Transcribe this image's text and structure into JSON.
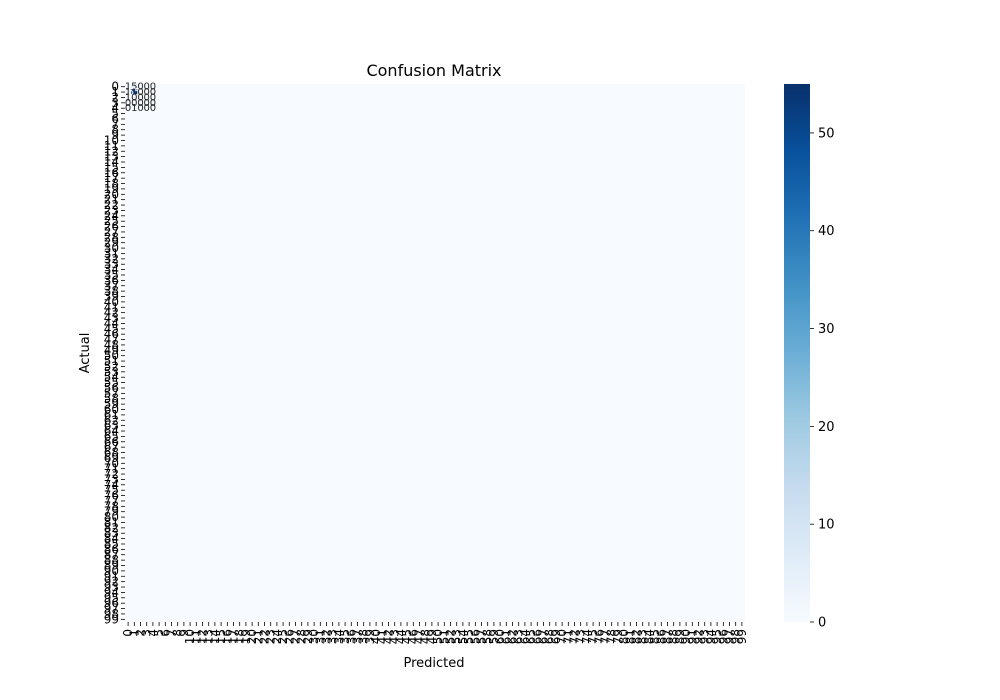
{
  "chart_data": {
    "type": "heatmap",
    "title": "Confusion Matrix",
    "xlabel": "Predicted",
    "ylabel": "Actual",
    "x_tick_labels": [
      "0",
      "1",
      "2",
      "3",
      "4",
      "5",
      "6",
      "7",
      "8",
      "9",
      "10",
      "11",
      "12",
      "13",
      "14",
      "15",
      "16",
      "17",
      "18",
      "19",
      "20",
      "21",
      "22",
      "23",
      "24",
      "25",
      "26",
      "27",
      "28",
      "29",
      "30",
      "31",
      "32",
      "33",
      "34",
      "35",
      "36",
      "37",
      "38",
      "39",
      "40",
      "41",
      "42",
      "43",
      "44",
      "45",
      "46",
      "47",
      "48",
      "49",
      "50",
      "51",
      "52",
      "53",
      "54",
      "55",
      "56",
      "57",
      "58",
      "59",
      "60",
      "61",
      "62",
      "63",
      "64",
      "65",
      "66",
      "67",
      "68",
      "69",
      "70",
      "71",
      "72",
      "73",
      "74",
      "75",
      "76",
      "77",
      "78",
      "79",
      "80",
      "81",
      "82",
      "83",
      "84",
      "85",
      "86",
      "87",
      "88",
      "89",
      "90",
      "91",
      "92",
      "93",
      "94",
      "95",
      "96",
      "97",
      "98",
      "99"
    ],
    "y_tick_labels": [
      "0",
      "1",
      "2",
      "3",
      "4",
      "5",
      "6",
      "7",
      "8",
      "9",
      "10",
      "11",
      "12",
      "13",
      "14",
      "15",
      "16",
      "17",
      "18",
      "19",
      "20",
      "21",
      "22",
      "23",
      "24",
      "25",
      "26",
      "27",
      "28",
      "29",
      "30",
      "31",
      "32",
      "33",
      "34",
      "35",
      "36",
      "37",
      "38",
      "39",
      "40",
      "41",
      "42",
      "43",
      "44",
      "45",
      "46",
      "47",
      "48",
      "49",
      "50",
      "51",
      "52",
      "53",
      "54",
      "55",
      "56",
      "57",
      "58",
      "59",
      "60",
      "61",
      "62",
      "63",
      "64",
      "65",
      "66",
      "67",
      "68",
      "69",
      "70",
      "71",
      "72",
      "73",
      "74",
      "75",
      "76",
      "77",
      "78",
      "79",
      "80",
      "81",
      "82",
      "83",
      "84",
      "85",
      "86",
      "87",
      "88",
      "89",
      "90",
      "91",
      "92",
      "93",
      "94",
      "95",
      "96",
      "97",
      "98",
      "99"
    ],
    "cells": [
      [
        0,
        0,
        "1"
      ],
      [
        0,
        1,
        "5"
      ],
      [
        0,
        2,
        "0"
      ],
      [
        0,
        3,
        "0"
      ],
      [
        0,
        4,
        "0"
      ],
      [
        1,
        0,
        "1"
      ],
      [
        1,
        1,
        "55"
      ],
      [
        1,
        2,
        "0"
      ],
      [
        1,
        3,
        "0"
      ],
      [
        1,
        4,
        "0"
      ],
      [
        2,
        0,
        "1"
      ],
      [
        2,
        1,
        "0"
      ],
      [
        2,
        2,
        "0"
      ],
      [
        2,
        3,
        "0"
      ],
      [
        2,
        4,
        "0"
      ],
      [
        3,
        0,
        "0"
      ],
      [
        3,
        1,
        "0"
      ],
      [
        3,
        2,
        "0"
      ],
      [
        3,
        3,
        "0"
      ],
      [
        3,
        4,
        "0"
      ],
      [
        4,
        0,
        "0"
      ],
      [
        4,
        1,
        "1"
      ],
      [
        4,
        2,
        "0"
      ],
      [
        4,
        3,
        "0"
      ],
      [
        4,
        4,
        "0"
      ]
    ],
    "colorbar": {
      "min": 0,
      "max": 55,
      "ticks": [
        "0",
        "10",
        "20",
        "30",
        "40",
        "50"
      ],
      "colormap": "Blues",
      "colors": [
        "#f7fbff",
        "#deebf7",
        "#c6dbef",
        "#9ecae1",
        "#6baed6",
        "#4292c6",
        "#2171b5",
        "#08519c",
        "#08306b"
      ]
    }
  }
}
